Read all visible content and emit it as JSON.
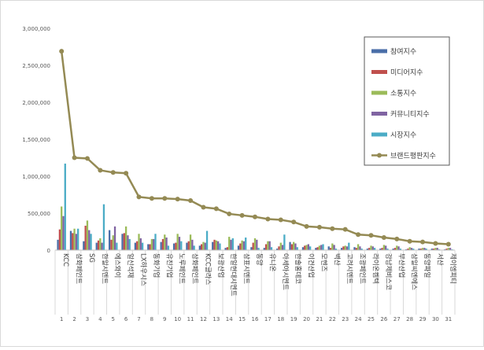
{
  "chart_data": {
    "type": "bar",
    "title": "",
    "xlabel": "",
    "ylabel": "",
    "ylim": [
      0,
      3000000
    ],
    "yticks": [
      "0",
      "500,000",
      "1,000,000",
      "1,500,000",
      "2,000,000",
      "2,500,000",
      "3,000,000"
    ],
    "grid": false,
    "legend_position": "top-right",
    "categories": [
      "KCC",
      "삼화페인트",
      "SG",
      "한일시멘트",
      "에스와이",
      "일신석재",
      "LX하우시스",
      "동화기업",
      "유진기업",
      "노루페인트",
      "삼화페인트",
      "KCC글라스",
      "보광산업",
      "한일현대시멘트",
      "삼표시멘트",
      "동양",
      "유니온",
      "아세아시멘트",
      "한솔홈데코",
      "이건산업",
      "모헨즈",
      "벽산",
      "고려시멘트",
      "조광페인트",
      "라이온켐텍",
      "강남제비스코",
      "부산산업",
      "삼일씨엔에스",
      "동양파일",
      "서산",
      "제이엠피티"
    ],
    "ranks": [
      "1",
      "2",
      "3",
      "4",
      "5",
      "6",
      "7",
      "8",
      "9",
      "10",
      "11",
      "12",
      "13",
      "14",
      "15",
      "16",
      "17",
      "18",
      "19",
      "20",
      "21",
      "22",
      "23",
      "24",
      "25",
      "26",
      "27",
      "28",
      "29",
      "30",
      "31"
    ],
    "series": [
      {
        "name": "참여지수",
        "kind": "bar",
        "color": "#4a6ea8",
        "values": [
          140000,
          260000,
          120000,
          100000,
          270000,
          220000,
          100000,
          80000,
          110000,
          90000,
          100000,
          60000,
          110000,
          30000,
          60000,
          40000,
          30000,
          20000,
          110000,
          40000,
          30000,
          50000,
          30000,
          40000,
          20000,
          20000,
          20000,
          10000,
          20000,
          20000,
          10000
        ]
      },
      {
        "name": "미디어지수",
        "kind": "bar",
        "color": "#c0504d",
        "values": [
          280000,
          230000,
          330000,
          130000,
          140000,
          230000,
          120000,
          80000,
          150000,
          100000,
          120000,
          80000,
          140000,
          40000,
          90000,
          100000,
          80000,
          50000,
          80000,
          60000,
          40000,
          30000,
          50000,
          30000,
          30000,
          30000,
          30000,
          20000,
          20000,
          20000,
          20000
        ]
      },
      {
        "name": "소통지수",
        "kind": "bar",
        "color": "#9bbb59",
        "values": [
          590000,
          290000,
          400000,
          160000,
          200000,
          320000,
          220000,
          150000,
          210000,
          220000,
          210000,
          110000,
          130000,
          180000,
          130000,
          160000,
          120000,
          100000,
          110000,
          70000,
          60000,
          90000,
          60000,
          80000,
          60000,
          70000,
          60000,
          40000,
          30000,
          30000,
          30000
        ]
      },
      {
        "name": "커뮤니티지수",
        "kind": "bar",
        "color": "#8064a2",
        "values": [
          460000,
          220000,
          270000,
          100000,
          320000,
          200000,
          160000,
          150000,
          170000,
          180000,
          140000,
          100000,
          120000,
          140000,
          120000,
          140000,
          120000,
          70000,
          90000,
          80000,
          70000,
          70000,
          50000,
          50000,
          50000,
          60000,
          50000,
          30000,
          30000,
          30000,
          30000
        ]
      },
      {
        "name": "시장지수",
        "kind": "bar",
        "color": "#4bacc6",
        "values": [
          1170000,
          290000,
          220000,
          620000,
          100000,
          150000,
          100000,
          220000,
          60000,
          120000,
          60000,
          260000,
          90000,
          160000,
          170000,
          30000,
          40000,
          210000,
          40000,
          50000,
          80000,
          20000,
          100000,
          20000,
          30000,
          20000,
          20000,
          20000,
          20000,
          10000,
          10000
        ]
      },
      {
        "name": "브랜드평판지수",
        "kind": "line",
        "color": "#948a54",
        "values": [
          2690000,
          1250000,
          1240000,
          1080000,
          1050000,
          1040000,
          720000,
          700000,
          700000,
          690000,
          670000,
          580000,
          560000,
          490000,
          470000,
          450000,
          420000,
          410000,
          380000,
          320000,
          310000,
          290000,
          280000,
          210000,
          200000,
          170000,
          150000,
          120000,
          110000,
          90000,
          80000
        ]
      }
    ]
  }
}
